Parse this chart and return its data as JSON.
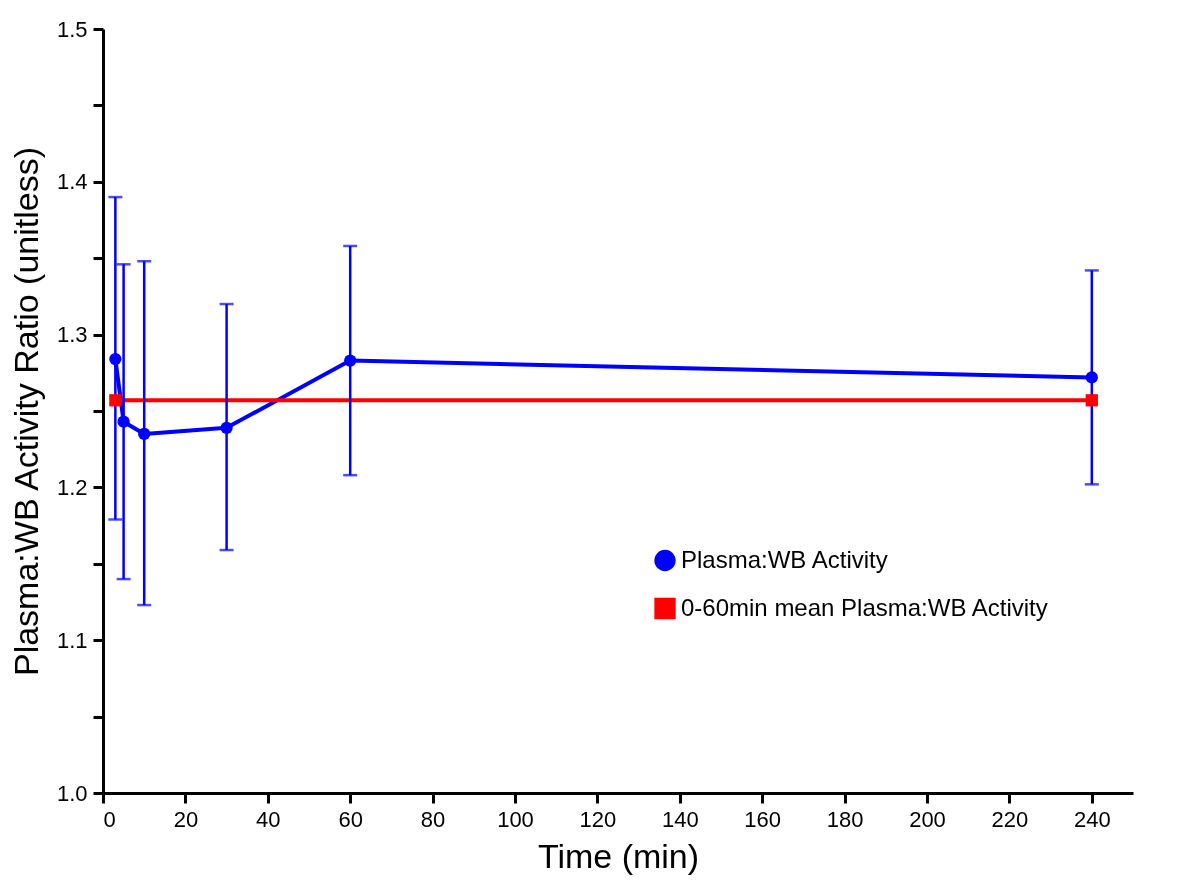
{
  "chart_data": {
    "type": "line",
    "xlabel": "Time (min)",
    "ylabel": "Plasma:WB Activity Ratio (unitless)",
    "xlim": [
      0,
      250
    ],
    "xticks": [
      0,
      20,
      40,
      60,
      80,
      100,
      120,
      140,
      160,
      180,
      200,
      220,
      240
    ],
    "ylim": [
      1.0,
      1.5
    ],
    "yticks": [
      {
        "value": 1.0,
        "label": "1.0"
      },
      {
        "value": 1.05,
        "label": null
      },
      {
        "value": 1.1,
        "label": "1.1"
      },
      {
        "value": 1.15,
        "label": null
      },
      {
        "value": 1.2,
        "label": "1.2"
      },
      {
        "value": 1.25,
        "label": null
      },
      {
        "value": 1.3,
        "label": "1.3"
      },
      {
        "value": 1.35,
        "label": null
      },
      {
        "value": 1.4,
        "label": "1.4"
      },
      {
        "value": 1.45,
        "label": null
      },
      {
        "value": 1.5,
        "label": "1.5"
      }
    ],
    "grid": false,
    "legend": "right",
    "line_style": "solid",
    "series": [
      {
        "name": "Plasma:WB Activity",
        "color": "#0000ff",
        "marker": "circle",
        "x": [
          3,
          5,
          10,
          30,
          60,
          240
        ],
        "values": [
          1.284,
          1.243,
          1.235,
          1.239,
          1.283,
          1.272
        ],
        "errors": [
          [
            1.179,
            1.39
          ],
          [
            1.14,
            1.346
          ],
          [
            1.123,
            1.348
          ],
          [
            1.159,
            1.32
          ],
          [
            1.208,
            1.358
          ],
          [
            1.202,
            1.342
          ]
        ]
      },
      {
        "name": "0-60min mean Plasma:WB Activity",
        "color": "#ff0000",
        "marker": "square",
        "x": [
          3,
          240
        ],
        "values": [
          1.257,
          1.257
        ]
      }
    ]
  }
}
